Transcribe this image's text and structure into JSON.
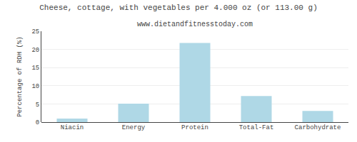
{
  "chart_data": {
    "type": "bar",
    "title": "Cheese, cottage, with vegetables per 4.000 oz (or 113.00 g)",
    "subtitle": "www.dietandfitnesstoday.com",
    "categories": [
      "Niacin",
      "Energy",
      "Protein",
      "Total-Fat",
      "Carbohydrate"
    ],
    "values": [
      1.0,
      5.1,
      21.8,
      7.2,
      3.1
    ],
    "color": "#afd8e6",
    "ylabel": "Percentage of RDH (%)",
    "ylim": [
      0,
      25
    ],
    "yticks": [
      0,
      5,
      10,
      15,
      20,
      25
    ],
    "grid": true
  }
}
